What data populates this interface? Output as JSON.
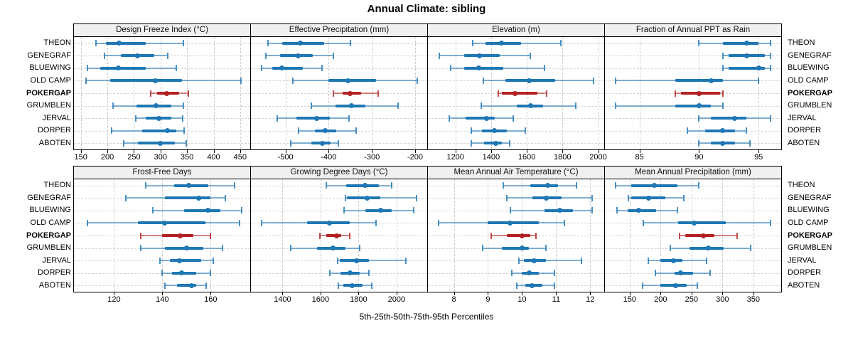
{
  "title": "Annual Climate: sibling",
  "caption": "5th-25th-50th-75th-95th Percentiles",
  "sites": [
    "THEON",
    "GENEGRAF",
    "BLUEWING",
    "OLD CAMP",
    "POKERGAP",
    "GRUMBLEN",
    "JERVAL",
    "DORPER",
    "ABOTEN"
  ],
  "highlight_site": "POKERGAP",
  "colors": {
    "normal": "#1f77b4",
    "highlight": "#b22222",
    "strip_bg": "#f0f0f0",
    "grid": "#cccccc"
  },
  "chart_data": [
    {
      "type": "dotplot-interval",
      "title": "Design Freeze Index (°C)",
      "row": 0,
      "col": 0,
      "xlim": [
        137,
        469
      ],
      "ticks": [
        150,
        200,
        250,
        300,
        350,
        400,
        450
      ],
      "percentiles": [
        "5th",
        "25th",
        "50th",
        "75th",
        "95th"
      ],
      "values": [
        [
          178,
          197,
          222,
          272,
          343
        ],
        [
          195,
          225,
          257,
          288,
          313
        ],
        [
          162,
          186,
          220,
          272,
          330
        ],
        [
          160,
          205,
          290,
          340,
          452
        ],
        [
          281,
          293,
          312,
          335,
          352
        ],
        [
          210,
          255,
          292,
          320,
          343
        ],
        [
          253,
          272,
          297,
          320,
          342
        ],
        [
          208,
          265,
          313,
          330,
          345
        ],
        [
          230,
          257,
          300,
          327,
          348
        ]
      ]
    },
    {
      "type": "dotplot-interval",
      "title": "Effective Precipitation (mm)",
      "row": 0,
      "col": 1,
      "xlim": [
        -580,
        -172
      ],
      "ticks": [
        -500,
        -400,
        -300,
        -200
      ],
      "percentiles": [
        "5th",
        "25th",
        "50th",
        "75th",
        "95th"
      ],
      "values": [
        [
          -540,
          -508,
          -465,
          -410,
          -350
        ],
        [
          -545,
          -512,
          -470,
          -437,
          -390
        ],
        [
          -555,
          -530,
          -508,
          -460,
          -415
        ],
        [
          -483,
          -400,
          -355,
          -290,
          -195
        ],
        [
          -390,
          -368,
          -350,
          -325,
          -285
        ],
        [
          -440,
          -385,
          -348,
          -315,
          -240
        ],
        [
          -520,
          -475,
          -428,
          -398,
          -353
        ],
        [
          -470,
          -432,
          -408,
          -383,
          -337
        ],
        [
          -488,
          -440,
          -415,
          -395,
          -378
        ]
      ]
    },
    {
      "type": "dotplot-interval",
      "title": "Elevation (m)",
      "row": 0,
      "col": 2,
      "xlim": [
        1046,
        2034
      ],
      "ticks": [
        1200,
        1400,
        1600,
        1800,
        2000
      ],
      "percentiles": [
        "5th",
        "25th",
        "50th",
        "75th",
        "95th"
      ],
      "values": [
        [
          1295,
          1370,
          1460,
          1570,
          1790
        ],
        [
          1110,
          1250,
          1335,
          1450,
          1620
        ],
        [
          1175,
          1250,
          1330,
          1470,
          1700
        ],
        [
          1355,
          1480,
          1615,
          1760,
          1975
        ],
        [
          1440,
          1460,
          1535,
          1660,
          1710
        ],
        [
          1345,
          1545,
          1620,
          1690,
          1875
        ],
        [
          1165,
          1255,
          1375,
          1420,
          1525
        ],
        [
          1290,
          1350,
          1420,
          1490,
          1590
        ],
        [
          1290,
          1360,
          1428,
          1460,
          1505
        ]
      ]
    },
    {
      "type": "dotplot-interval",
      "title": "Fraction of Annual PPT as Rain",
      "row": 0,
      "col": 3,
      "xlim": [
        82.1,
        96.9
      ],
      "ticks": [
        85,
        90,
        95
      ],
      "percentiles": [
        "5th",
        "25th",
        "50th",
        "75th",
        "95th"
      ],
      "values": [
        [
          90,
          92,
          94,
          95,
          96
        ],
        [
          92,
          92.5,
          94,
          95.5,
          96
        ],
        [
          92,
          92.5,
          95,
          95.5,
          96
        ],
        [
          83,
          88,
          91,
          92,
          95
        ],
        [
          88,
          88.5,
          90,
          91.8,
          92
        ],
        [
          83,
          88,
          90,
          91,
          92
        ],
        [
          90,
          91,
          93,
          94,
          96
        ],
        [
          89,
          90.5,
          92,
          93,
          94
        ],
        [
          90,
          91,
          92,
          93,
          94.3
        ]
      ]
    },
    {
      "type": "dotplot-interval",
      "title": "Frost-Free Days",
      "row": 1,
      "col": 0,
      "xlim": [
        103.4,
        176.4
      ],
      "ticks": [
        120,
        140,
        160
      ],
      "percentiles": [
        "5th",
        "25th",
        "50th",
        "75th",
        "95th"
      ],
      "values": [
        [
          133,
          145,
          151,
          159,
          170
        ],
        [
          125,
          141,
          155,
          160,
          166
        ],
        [
          136,
          149,
          159,
          164,
          173
        ],
        [
          109,
          130,
          141,
          158,
          172
        ],
        [
          131,
          140,
          147.5,
          153,
          160
        ],
        [
          131,
          141,
          150,
          157,
          165
        ],
        [
          139,
          143,
          147,
          156,
          161
        ],
        [
          140,
          144,
          148,
          154,
          160
        ],
        [
          141,
          146,
          152,
          154,
          158
        ]
      ]
    },
    {
      "type": "dotplot-interval",
      "title": "Growing Degree Days (°C)",
      "row": 1,
      "col": 1,
      "xlim": [
        1234,
        2161
      ],
      "ticks": [
        1400,
        1600,
        1800,
        2000
      ],
      "percentiles": [
        "5th",
        "25th",
        "50th",
        "75th",
        "95th"
      ],
      "values": [
        [
          1630,
          1735,
          1835,
          1905,
          1975
        ],
        [
          1730,
          1740,
          1845,
          1915,
          2105
        ],
        [
          1725,
          1835,
          1915,
          1975,
          2090
        ],
        [
          1290,
          1530,
          1645,
          1755,
          1890
        ],
        [
          1595,
          1630,
          1685,
          1710,
          1755
        ],
        [
          1445,
          1580,
          1665,
          1730,
          1805
        ],
        [
          1690,
          1700,
          1790,
          1855,
          2050
        ],
        [
          1650,
          1705,
          1755,
          1805,
          1855
        ],
        [
          1695,
          1720,
          1765,
          1820,
          1870
        ]
      ]
    },
    {
      "type": "dotplot-interval",
      "title": "Mean Annual Air Temperature (°C)",
      "row": 1,
      "col": 2,
      "xlim": [
        7.24,
        12.41
      ],
      "ticks": [
        8,
        9,
        10,
        11,
        12
      ],
      "percentiles": [
        "5th",
        "25th",
        "50th",
        "75th",
        "95th"
      ],
      "values": [
        [
          9.45,
          10.25,
          10.75,
          11.05,
          11.6
        ],
        [
          9.55,
          10.3,
          10.7,
          11.15,
          12.05
        ],
        [
          9.65,
          10.65,
          11.1,
          11.5,
          12.05
        ],
        [
          7.55,
          9.0,
          9.65,
          10.5,
          11.25
        ],
        [
          9.1,
          9.55,
          10.0,
          10.25,
          10.4
        ],
        [
          8.85,
          9.4,
          10.0,
          10.2,
          10.7
        ],
        [
          9.9,
          10.05,
          10.35,
          10.7,
          11.75
        ],
        [
          9.7,
          10.0,
          10.2,
          10.5,
          10.95
        ],
        [
          9.85,
          10.1,
          10.3,
          10.6,
          10.95
        ]
      ]
    },
    {
      "type": "dotplot-interval",
      "title": "Mean Annual Precipitation (mm)",
      "row": 1,
      "col": 3,
      "xlim": [
        110,
        395
      ],
      "ticks": [
        150,
        200,
        250,
        300,
        350
      ],
      "percentiles": [
        "5th",
        "25th",
        "50th",
        "75th",
        "95th"
      ],
      "values": [
        [
          127,
          153,
          190,
          227,
          262
        ],
        [
          148,
          152,
          181,
          208,
          237
        ],
        [
          130,
          147,
          165,
          193,
          227
        ],
        [
          172,
          228,
          254,
          305,
          378
        ],
        [
          231,
          240,
          269,
          287,
          324
        ],
        [
          216,
          247,
          277,
          302,
          345
        ],
        [
          180,
          200,
          221,
          235,
          274
        ],
        [
          192,
          222,
          232,
          252,
          280
        ],
        [
          171,
          200,
          224,
          242,
          259
        ]
      ]
    }
  ]
}
